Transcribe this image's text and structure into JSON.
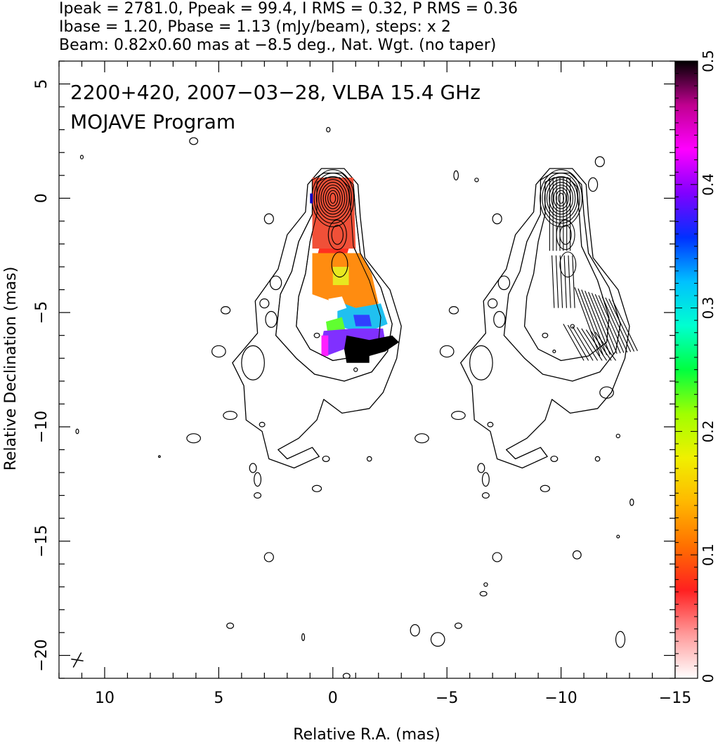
{
  "header": {
    "line1": "Ipeak = 2781.0, Ppeak = 99.4, I RMS = 0.32, P RMS = 0.36",
    "line2": "Ibase = 1.20, Pbase = 1.13 (mJy/beam), steps: x 2",
    "line3": "Beam: 0.82x0.60 mas at −8.5 deg., Nat. Wgt. (no taper)"
  },
  "chart_data": {
    "type": "contour",
    "annotation_line1": "2200+420, 2007−03−28, VLBA 15.4 GHz",
    "annotation_line2": "MOJAVE Program",
    "xlabel": "Relative R.A. (mas)",
    "ylabel": "Relative Declination (mas)",
    "xlim": [
      12,
      -15
    ],
    "ylim": [
      -21,
      6
    ],
    "x_ticks": [
      10,
      5,
      0,
      -5,
      -10,
      -15
    ],
    "x_tick_labels": [
      "10",
      "5",
      "0",
      "−5",
      "−10",
      "−15"
    ],
    "y_ticks": [
      5,
      0,
      -5,
      -10,
      -15,
      -20
    ],
    "y_tick_labels": [
      "5",
      "0",
      "−5",
      "−10",
      "−15",
      "−20"
    ],
    "colorbar": {
      "range": [
        0,
        0.5
      ],
      "ticks": [
        0,
        0.1,
        0.2,
        0.3,
        0.4,
        0.5
      ],
      "tick_labels": [
        "0",
        "0.1",
        "0.2",
        "0.3",
        "0.4",
        "0.5"
      ],
      "colors": [
        "#ffffff",
        "#ff9a9a",
        "#ff2020",
        "#ff7000",
        "#ffb800",
        "#f0f000",
        "#a0ff00",
        "#00ff40",
        "#00ffd0",
        "#00c0ff",
        "#0030ff",
        "#8000ff",
        "#ff00ff",
        "#c00090",
        "#000000"
      ]
    },
    "left_panel_center_ra": 0,
    "right_panel_center_ra": -10,
    "stokes_I_peak_mJy_per_beam": 2781.0,
    "polarized_peak_mJy_per_beam": 99.4,
    "I_rms": 0.32,
    "P_rms": 0.36,
    "I_base": 1.2,
    "P_base": 1.13,
    "contour_step_factor": 2,
    "beam": {
      "major_mas": 0.82,
      "minor_mas": 0.6,
      "pa_deg": -8.5,
      "position_ra": 11.2,
      "position_dec": -20.2
    }
  }
}
